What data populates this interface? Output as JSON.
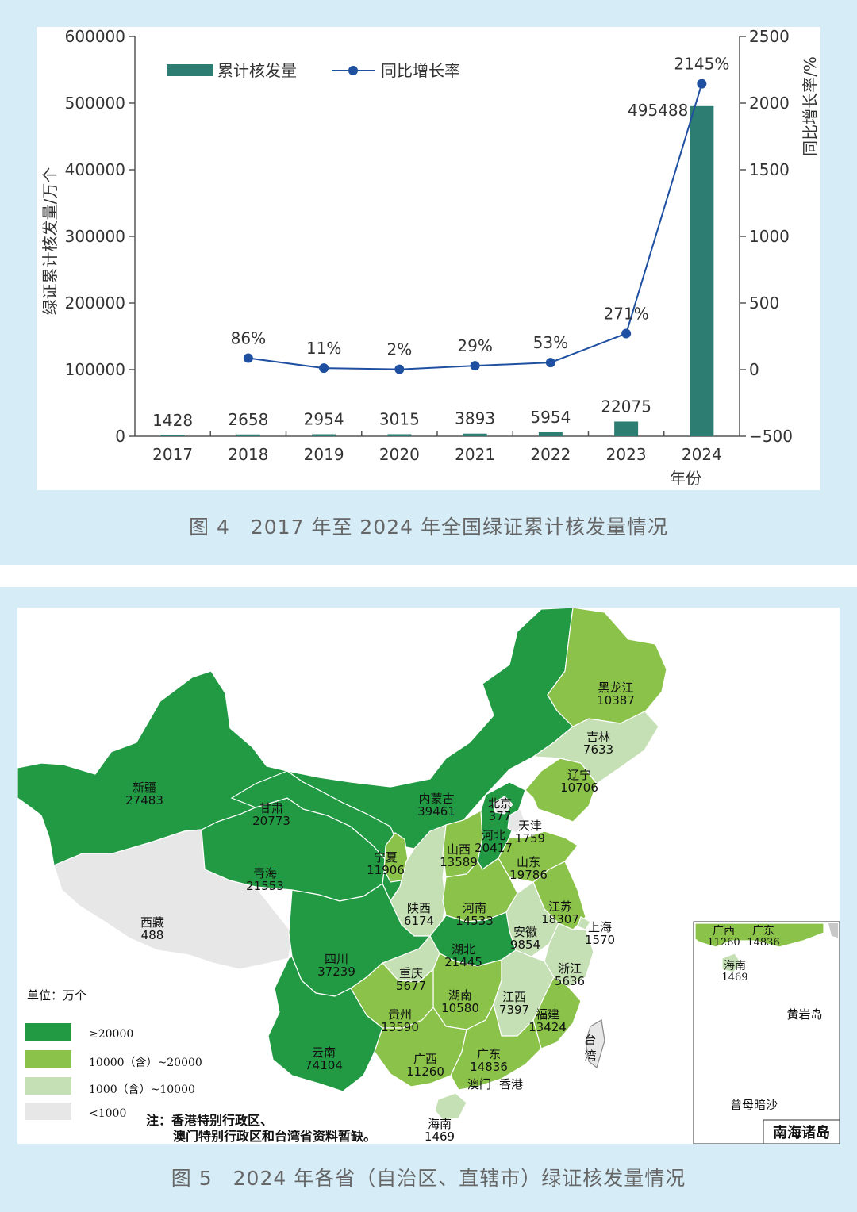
{
  "chart_data": {
    "type": "bar",
    "categories": [
      "2017",
      "2018",
      "2019",
      "2020",
      "2021",
      "2022",
      "2023",
      "2024"
    ],
    "series": [
      {
        "name": "累计核发量",
        "type": "bar",
        "axis": "left",
        "values": [
          1428,
          2658,
          2954,
          3015,
          3893,
          5954,
          22075,
          495488
        ],
        "labels": [
          "1428",
          "2658",
          "2954",
          "3015",
          "3893",
          "5954",
          "22075",
          "495488"
        ],
        "color": "#2e7d72"
      },
      {
        "name": "同比增长率",
        "type": "line",
        "axis": "right",
        "values": [
          null,
          86,
          11,
          2,
          29,
          53,
          271,
          2145
        ],
        "labels": [
          "",
          "86%",
          "11%",
          "2%",
          "29%",
          "53%",
          "271%",
          "2145%"
        ],
        "color": "#1f4fa0"
      }
    ],
    "ylabel": "绿证累计核发量/万个",
    "y2label": "同比增长率/%",
    "xlabel": "年份",
    "ylim": [
      0,
      600000
    ],
    "yticks": [
      "0",
      "100000",
      "200000",
      "300000",
      "400000",
      "500000",
      "600000"
    ],
    "y2lim": [
      -500,
      2500
    ],
    "y2ticks": [
      "-500",
      "0",
      "500",
      "1000",
      "1500",
      "2000",
      "2500"
    ],
    "legend": "top-left",
    "grid": false
  },
  "captions": {
    "fig4": "图 4　2017 年至 2024 年全国绿证累计核发量情况",
    "fig5": "图 5　2024 年各省（自治区、直辖市）绿证核发量情况"
  },
  "map": {
    "unit": "单位：万个",
    "legend": [
      {
        "label": "≥20000",
        "color": "#229a44"
      },
      {
        "label": "10000（含）~20000",
        "color": "#8bc34a"
      },
      {
        "label": "1000（含）~10000",
        "color": "#c5e0b4"
      },
      {
        "label": "<1000",
        "color": "#e7e7e7"
      }
    ],
    "note_line1": "注：香港特别行政区、",
    "note_line2": "澳门特别行政区和台湾省资料暂缺。",
    "provinces": [
      {
        "name": "新疆",
        "value": "27483"
      },
      {
        "name": "西藏",
        "value": "488"
      },
      {
        "name": "青海",
        "value": "21553"
      },
      {
        "name": "甘肃",
        "value": "20773"
      },
      {
        "name": "内蒙古",
        "value": "39461"
      },
      {
        "name": "宁夏",
        "value": "11906"
      },
      {
        "name": "四川",
        "value": "37239"
      },
      {
        "name": "云南",
        "value": "74104"
      },
      {
        "name": "陕西",
        "value": "6174"
      },
      {
        "name": "山西",
        "value": "13589"
      },
      {
        "name": "河北",
        "value": "20417"
      },
      {
        "name": "北京",
        "value": "377"
      },
      {
        "name": "天津",
        "value": "1759"
      },
      {
        "name": "辽宁",
        "value": "10706"
      },
      {
        "name": "吉林",
        "value": "7633"
      },
      {
        "name": "黑龙江",
        "value": "10387"
      },
      {
        "name": "山东",
        "value": "19786"
      },
      {
        "name": "河南",
        "value": "14533"
      },
      {
        "name": "江苏",
        "value": "18307"
      },
      {
        "name": "上海",
        "value": "1570"
      },
      {
        "name": "安徽",
        "value": "9854"
      },
      {
        "name": "湖北",
        "value": "21445"
      },
      {
        "name": "重庆",
        "value": "5677"
      },
      {
        "name": "浙江",
        "value": "5636"
      },
      {
        "name": "湖南",
        "value": "10580"
      },
      {
        "name": "江西",
        "value": "7397"
      },
      {
        "name": "福建",
        "value": "13424"
      },
      {
        "name": "贵州",
        "value": "13590"
      },
      {
        "name": "广西",
        "value": "11260"
      },
      {
        "name": "广东",
        "value": "14836"
      },
      {
        "name": "海南",
        "value": "1469"
      }
    ],
    "special_labels": {
      "macau": "澳门",
      "hongkong": "香港",
      "taiwan": "台湾"
    },
    "inset": {
      "title": "南海诸岛",
      "guangxi": {
        "name": "广西",
        "value": "11260"
      },
      "guangdong": {
        "name": "广东",
        "value": "14836"
      },
      "hainan": {
        "name": "海南",
        "value": "1469"
      },
      "huangyan": "黄岩岛",
      "zengmu": "曾母暗沙"
    }
  }
}
